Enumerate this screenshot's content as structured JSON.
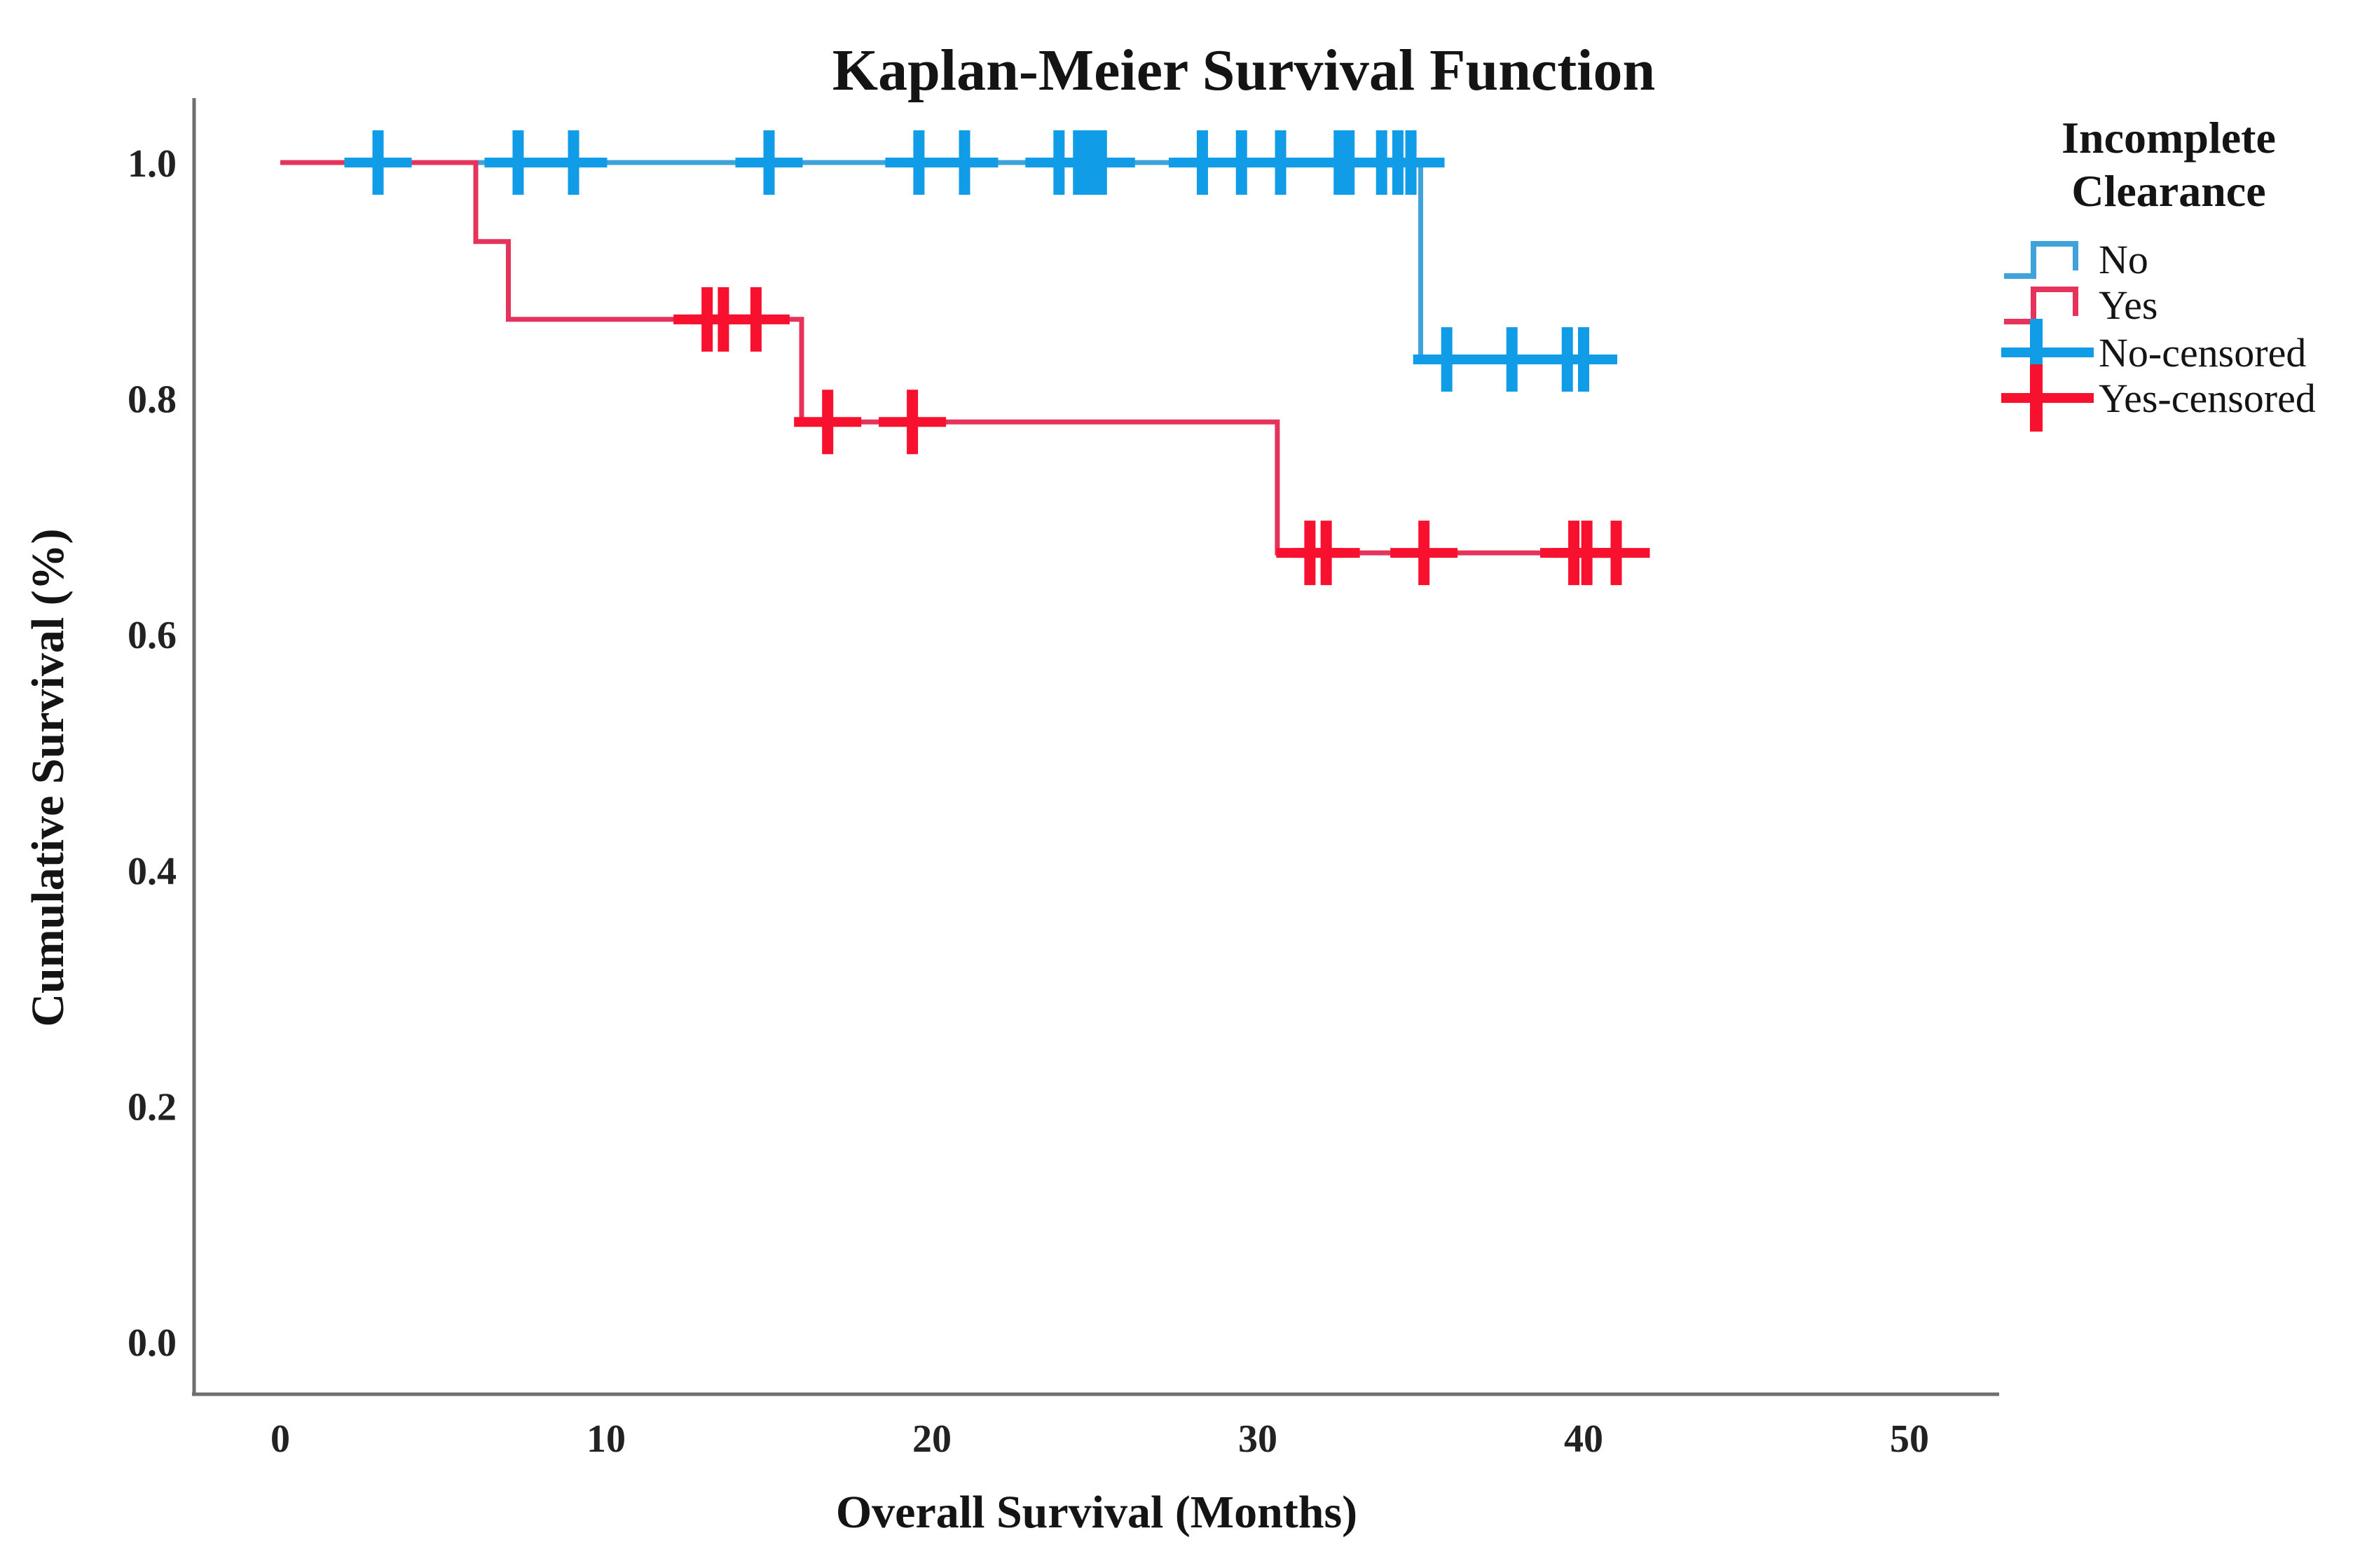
{
  "chart_data": {
    "type": "line",
    "subtype": "kaplan-meier-step",
    "title": "Kaplan-Meier Survival Function",
    "xlabel": "Overall Survival (Months)",
    "ylabel": "Cumulative Survival (%)",
    "xlim": [
      -2.6,
      52.8
    ],
    "ylim": [
      -0.045,
      1.055
    ],
    "xticks": [
      "0",
      "10",
      "20",
      "30",
      "40",
      "50"
    ],
    "xtick_values": [
      0,
      10,
      20,
      30,
      40,
      50
    ],
    "yticks": [
      "1.0",
      "0.8",
      "0.6",
      "0.4",
      "0.2",
      "0.0"
    ],
    "ytick_values": [
      1.0,
      0.8,
      0.6,
      0.4,
      0.2,
      0.0
    ],
    "grid": false,
    "legend_position": "top-right",
    "legend_title": [
      "Incomplete",
      "Clearance"
    ],
    "legend_items": [
      {
        "label": "No",
        "kind": "step-line",
        "color": "#3FA2D9"
      },
      {
        "label": "Yes",
        "kind": "step-line",
        "color": "#E5335B"
      },
      {
        "label": "No-censored",
        "kind": "plus-marker",
        "color": "#119CE8"
      },
      {
        "label": "Yes-censored",
        "kind": "plus-marker",
        "color": "#F8102F"
      }
    ],
    "series": [
      {
        "name": "No",
        "line_color": "#3FA2D9",
        "censor_color": "#119CE8",
        "steps": [
          [
            0,
            1.0
          ],
          [
            35,
            1.0
          ],
          [
            35,
            0.833
          ],
          [
            40.5,
            0.833
          ]
        ],
        "censored": [
          [
            3.0,
            1.0
          ],
          [
            7.3,
            1.0
          ],
          [
            9.0,
            1.0
          ],
          [
            15.0,
            1.0
          ],
          [
            19.6,
            1.0
          ],
          [
            21.0,
            1.0
          ],
          [
            23.9,
            1.0
          ],
          [
            24.5,
            1.0
          ],
          [
            24.8,
            1.0
          ],
          [
            25.0,
            1.0
          ],
          [
            25.2,
            1.0
          ],
          [
            28.3,
            1.0
          ],
          [
            29.5,
            1.0
          ],
          [
            30.7,
            1.0
          ],
          [
            32.5,
            1.0
          ],
          [
            32.8,
            1.0
          ],
          [
            33.8,
            1.0
          ],
          [
            34.3,
            1.0
          ],
          [
            34.7,
            1.0
          ],
          [
            35.8,
            0.833
          ],
          [
            37.8,
            0.833
          ],
          [
            39.5,
            0.833
          ],
          [
            40.0,
            0.833
          ]
        ]
      },
      {
        "name": "Yes",
        "line_color": "#E5335B",
        "censor_color": "#F8102F",
        "steps": [
          [
            0,
            1.0
          ],
          [
            6,
            1.0
          ],
          [
            6,
            0.933
          ],
          [
            7,
            0.933
          ],
          [
            7,
            0.867
          ],
          [
            16,
            0.867
          ],
          [
            16,
            0.78
          ],
          [
            30.6,
            0.78
          ],
          [
            30.6,
            0.669
          ],
          [
            41.3,
            0.669
          ]
        ],
        "censored": [
          [
            13.1,
            0.867
          ],
          [
            13.6,
            0.867
          ],
          [
            14.6,
            0.867
          ],
          [
            16.8,
            0.78
          ],
          [
            19.4,
            0.78
          ],
          [
            31.6,
            0.669
          ],
          [
            32.1,
            0.669
          ],
          [
            35.1,
            0.669
          ],
          [
            39.7,
            0.669
          ],
          [
            40.1,
            0.669
          ],
          [
            41.0,
            0.669
          ]
        ]
      }
    ],
    "axis_color": "#6E6E6E",
    "text_color": "#141414"
  }
}
